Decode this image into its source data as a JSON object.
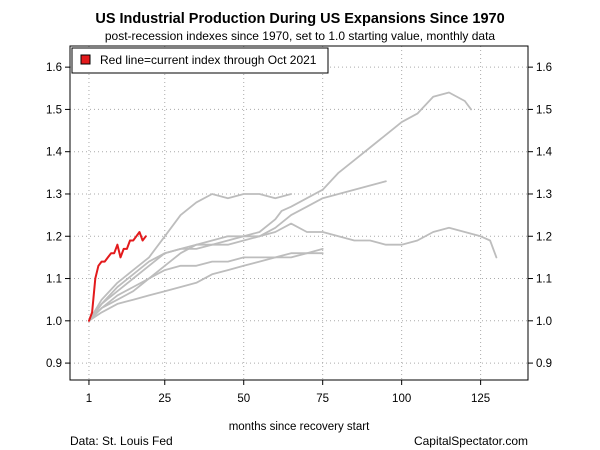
{
  "chart_data": {
    "type": "line",
    "title": "US Industrial Production During US Expansions Since 1970",
    "subtitle": "post-recession indexes since 1970, set to 1.0 starting value, monthly data",
    "xlabel": "months since recovery start",
    "ylabel": "",
    "xlim": [
      -5,
      140
    ],
    "ylim": [
      0.86,
      1.65
    ],
    "x_ticks": [
      1,
      25,
      50,
      75,
      100,
      125
    ],
    "y_ticks": [
      0.9,
      1.0,
      1.1,
      1.2,
      1.3,
      1.4,
      1.5,
      1.6
    ],
    "grid": true,
    "legend": {
      "position": "top-left",
      "entries": [
        "Red line=current index through Oct 2021"
      ]
    },
    "source": "Data: St. Louis Fed",
    "credit": "CapitalSpectator.com",
    "colors": {
      "current": "#e31a1c",
      "past": "#bdbdbd"
    },
    "series": [
      {
        "role": "past",
        "x": [
          1,
          5,
          10,
          15,
          20,
          25,
          30,
          35,
          40,
          45,
          50,
          55,
          60,
          62,
          65,
          70,
          75,
          80,
          85,
          90,
          95,
          100,
          105,
          110,
          115,
          120,
          122
        ],
        "y": [
          1.0,
          1.04,
          1.07,
          1.1,
          1.13,
          1.16,
          1.17,
          1.18,
          1.18,
          1.19,
          1.2,
          1.21,
          1.24,
          1.26,
          1.27,
          1.29,
          1.31,
          1.35,
          1.38,
          1.41,
          1.44,
          1.47,
          1.49,
          1.53,
          1.54,
          1.52,
          1.5
        ]
      },
      {
        "role": "past",
        "x": [
          1,
          5,
          10,
          15,
          20,
          25,
          30,
          35,
          40,
          45,
          50,
          55,
          60,
          65,
          70,
          75,
          80,
          85,
          90,
          95
        ],
        "y": [
          1.0,
          1.03,
          1.05,
          1.07,
          1.1,
          1.13,
          1.16,
          1.18,
          1.19,
          1.2,
          1.2,
          1.2,
          1.22,
          1.25,
          1.27,
          1.29,
          1.3,
          1.31,
          1.32,
          1.33
        ]
      },
      {
        "role": "past",
        "x": [
          1,
          5,
          10,
          15,
          20,
          25,
          30,
          35,
          40,
          45,
          50,
          55,
          60,
          65,
          70,
          75,
          80,
          85,
          90,
          95,
          100,
          105,
          110,
          115,
          120,
          125,
          128,
          130
        ],
        "y": [
          1.0,
          1.04,
          1.08,
          1.11,
          1.14,
          1.16,
          1.17,
          1.17,
          1.18,
          1.18,
          1.19,
          1.2,
          1.21,
          1.23,
          1.21,
          1.21,
          1.2,
          1.19,
          1.19,
          1.18,
          1.18,
          1.19,
          1.21,
          1.22,
          1.21,
          1.2,
          1.19,
          1.15
        ]
      },
      {
        "role": "past",
        "x": [
          1,
          5,
          10,
          15,
          20,
          25,
          30,
          35,
          40,
          45,
          50,
          55,
          60,
          65,
          70,
          75
        ],
        "y": [
          1.0,
          1.03,
          1.06,
          1.08,
          1.1,
          1.12,
          1.13,
          1.13,
          1.14,
          1.14,
          1.15,
          1.15,
          1.15,
          1.16,
          1.16,
          1.16
        ]
      },
      {
        "role": "past",
        "x": [
          1,
          5,
          10,
          15,
          20,
          25,
          30,
          35,
          40,
          45,
          50,
          55,
          60,
          65
        ],
        "y": [
          1.0,
          1.05,
          1.09,
          1.12,
          1.15,
          1.2,
          1.25,
          1.28,
          1.3,
          1.29,
          1.3,
          1.3,
          1.29,
          1.3
        ]
      },
      {
        "role": "past",
        "x": [
          1,
          5,
          10,
          15,
          20,
          25,
          30,
          35,
          40,
          45,
          50,
          55,
          60,
          65,
          70,
          75
        ],
        "y": [
          1.0,
          1.02,
          1.04,
          1.05,
          1.06,
          1.07,
          1.08,
          1.09,
          1.11,
          1.12,
          1.13,
          1.14,
          1.15,
          1.15,
          1.16,
          1.17
        ]
      },
      {
        "role": "current",
        "x": [
          1,
          2,
          3,
          4,
          5,
          6,
          7,
          8,
          9,
          10,
          11,
          12,
          13,
          14,
          15,
          16,
          17,
          18,
          19
        ],
        "y": [
          1.0,
          1.02,
          1.1,
          1.13,
          1.14,
          1.14,
          1.15,
          1.16,
          1.16,
          1.18,
          1.15,
          1.17,
          1.17,
          1.19,
          1.19,
          1.2,
          1.21,
          1.19,
          1.2
        ]
      }
    ]
  }
}
